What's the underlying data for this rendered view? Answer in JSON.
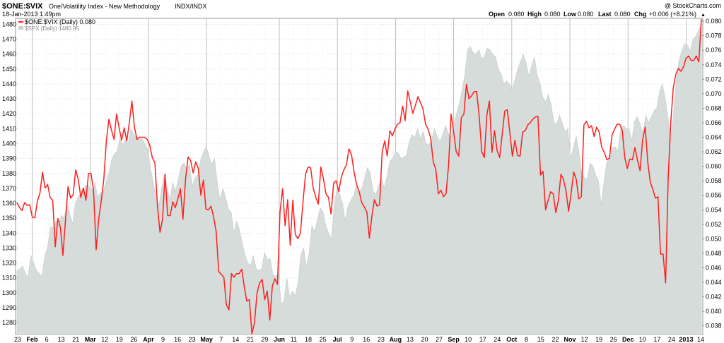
{
  "header": {
    "symbol": "$ONE:$VIX",
    "name": "One/Volatility Index - New Methodology",
    "exchange": "INDX/INDX",
    "copyright": "@ StockCharts.com",
    "date": "18-Jan-2013 1:49pm",
    "quote": {
      "open_label": "Open",
      "open": "0.080",
      "high_label": "High",
      "high": "0.080",
      "low_label": "Low",
      "low": "0.080",
      "last_label": "Last",
      "last": "0.080",
      "chg_label": "Chg",
      "chg": "+0.006 (+8.21%)",
      "chg_arrow": "▲"
    }
  },
  "legend": {
    "primary": "$ONE:$VIX (Daily) 0.080",
    "secondary": "$SPX (Daily) 1480.95"
  },
  "colors": {
    "primary_line": "#ff1f1f",
    "area_fill": "#d6dcda",
    "area_stroke": "#c2c9c7",
    "grid": "#cccccc",
    "text": "#000000"
  },
  "chart_data": {
    "type": "line",
    "title": "$ONE:$VIX One/Volatility Index - New Methodology INDX/INDX",
    "x_tick_labels": [
      "23",
      "Feb",
      "6",
      "13",
      "21",
      "Mar",
      "12",
      "19",
      "26",
      "Apr",
      "9",
      "16",
      "23",
      "May",
      "7",
      "14",
      "21",
      "29",
      "Jun",
      "11",
      "18",
      "25",
      "Jul",
      "9",
      "16",
      "23",
      "Aug",
      "13",
      "20",
      "27",
      "Sep",
      "10",
      "17",
      "24",
      "Oct",
      "8",
      "15",
      "22",
      "Nov",
      "12",
      "19",
      "26",
      "Dec",
      "10",
      "17",
      "24",
      "2013",
      "14"
    ],
    "left_axis": {
      "series": "$SPX",
      "ylim": [
        1272,
        1484
      ],
      "ticks": [
        1280,
        1290,
        1300,
        1310,
        1320,
        1330,
        1340,
        1350,
        1360,
        1370,
        1380,
        1390,
        1400,
        1410,
        1420,
        1430,
        1440,
        1450,
        1460,
        1470,
        1480
      ]
    },
    "right_axis": {
      "series": "$ONE:$VIX",
      "ylim": [
        0.0368,
        0.0804
      ],
      "ticks": [
        0.038,
        0.04,
        0.042,
        0.044,
        0.046,
        0.048,
        0.05,
        0.052,
        0.054,
        0.056,
        0.058,
        0.06,
        0.062,
        0.064,
        0.066,
        0.068,
        0.07,
        0.072,
        0.074,
        0.076,
        0.078,
        0.08
      ]
    },
    "series": [
      {
        "name": "$SPX (Daily) 1480.95",
        "type": "area",
        "axis": "left",
        "values": [
          1315,
          1316,
          1318,
          1313,
          1310,
          1325,
          1320,
          1315,
          1313,
          1311,
          1325,
          1330,
          1344,
          1344,
          1348,
          1346,
          1352,
          1350,
          1361,
          1353,
          1346,
          1360,
          1364,
          1368,
          1370,
          1372,
          1371,
          1369,
          1374,
          1364,
          1367,
          1368,
          1374,
          1380,
          1389,
          1393,
          1395,
          1404,
          1399,
          1403,
          1400,
          1410,
          1406,
          1405,
          1403,
          1403,
          1400,
          1396,
          1383,
          1374,
          1363,
          1358,
          1370,
          1380,
          1370,
          1362,
          1374,
          1368,
          1376,
          1385,
          1387,
          1383,
          1386,
          1371,
          1377,
          1379,
          1389,
          1394,
          1398,
          1392,
          1386,
          1390,
          1374,
          1362,
          1370,
          1364,
          1356,
          1354,
          1340,
          1348,
          1342,
          1333,
          1325,
          1320,
          1318,
          1325,
          1316,
          1315,
          1316,
          1327,
          1322,
          1323,
          1312,
          1311,
          1313,
          1292,
          1295,
          1310,
          1297,
          1301,
          1298,
          1306,
          1325,
          1330,
          1318,
          1326,
          1345,
          1341,
          1349,
          1357,
          1354,
          1345,
          1340,
          1336,
          1358,
          1370,
          1366,
          1360,
          1348,
          1358,
          1362,
          1365,
          1372,
          1368,
          1370,
          1377,
          1384,
          1380,
          1368,
          1366,
          1372,
          1377,
          1370,
          1378,
          1388,
          1390,
          1394,
          1394,
          1390,
          1391,
          1392,
          1401,
          1406,
          1404,
          1410,
          1403,
          1408,
          1400,
          1399,
          1402,
          1410,
          1405,
          1401,
          1406,
          1412,
          1407,
          1404,
          1412,
          1420,
          1427,
          1436,
          1446,
          1463,
          1465,
          1461,
          1460,
          1463,
          1457,
          1458,
          1464,
          1463,
          1460,
          1458,
          1450,
          1447,
          1440,
          1442,
          1440,
          1436,
          1443,
          1450,
          1455,
          1460,
          1454,
          1445,
          1452,
          1458,
          1446,
          1440,
          1431,
          1428,
          1433,
          1426,
          1414,
          1413,
          1419,
          1414,
          1408,
          1410,
          1390,
          1397,
          1405,
          1394,
          1380,
          1377,
          1376,
          1387,
          1385,
          1379,
          1375,
          1359,
          1374,
          1388,
          1389,
          1397,
          1398,
          1395,
          1410,
          1412,
          1410,
          1410,
          1402,
          1415,
          1418,
          1413,
          1407,
          1419,
          1414,
          1418,
          1422,
          1424,
          1435,
          1440,
          1430,
          1417,
          1402,
          1420,
          1443,
          1456,
          1462,
          1467,
          1466,
          1462,
          1470,
          1472,
          1476,
          1480
        ]
      },
      {
        "name": "$ONE:$VIX (Daily) 0.080",
        "type": "line",
        "axis": "right",
        "values": [
          0.055,
          0.0543,
          0.0539,
          0.055,
          0.0546,
          0.0547,
          0.053,
          0.0529,
          0.0552,
          0.0563,
          0.0592,
          0.057,
          0.0575,
          0.0557,
          0.0553,
          0.0489,
          0.0528,
          0.0516,
          0.0477,
          0.0526,
          0.0572,
          0.0556,
          0.0561,
          0.0595,
          0.0582,
          0.0557,
          0.057,
          0.0553,
          0.059,
          0.059,
          0.0566,
          0.0485,
          0.0527,
          0.0552,
          0.0582,
          0.0635,
          0.0665,
          0.065,
          0.0637,
          0.0672,
          0.0653,
          0.0636,
          0.0653,
          0.0635,
          0.066,
          0.069,
          0.0654,
          0.0637,
          0.064,
          0.064,
          0.064,
          0.0637,
          0.0629,
          0.0612,
          0.0605,
          0.0546,
          0.0509,
          0.0527,
          0.0589,
          0.0532,
          0.0532,
          0.0551,
          0.0543,
          0.0555,
          0.0569,
          0.0527,
          0.0582,
          0.0613,
          0.0608,
          0.0591,
          0.0606,
          0.0597,
          0.056,
          0.0581,
          0.0541,
          0.054,
          0.0545,
          0.053,
          0.051,
          0.0455,
          0.0451,
          0.0447,
          0.0409,
          0.0402,
          0.0452,
          0.0447,
          0.0452,
          0.0452,
          0.0458,
          0.0434,
          0.0414,
          0.0416,
          0.0367,
          0.0384,
          0.0425,
          0.0439,
          0.0444,
          0.0416,
          0.0428,
          0.0388,
          0.0435,
          0.0445,
          0.0437,
          0.0537,
          0.0569,
          0.0518,
          0.0554,
          0.0491,
          0.0553,
          0.0506,
          0.05,
          0.0508,
          0.0551,
          0.0589,
          0.0599,
          0.0598,
          0.057,
          0.0557,
          0.0548,
          0.0599,
          0.0583,
          0.0562,
          0.0557,
          0.0534,
          0.0577,
          0.058,
          0.0565,
          0.0585,
          0.0595,
          0.0602,
          0.0624,
          0.0616,
          0.0592,
          0.0575,
          0.0565,
          0.055,
          0.0544,
          0.0537,
          0.0501,
          0.0532,
          0.0554,
          0.0545,
          0.0547,
          0.062,
          0.0635,
          0.0614,
          0.0649,
          0.0642,
          0.0651,
          0.0658,
          0.066,
          0.0683,
          0.0663,
          0.0704,
          0.0689,
          0.0673,
          0.0684,
          0.0696,
          0.0688,
          0.0679,
          0.0658,
          0.0651,
          0.0639,
          0.0606,
          0.0596,
          0.0562,
          0.0567,
          0.0558,
          0.0562,
          0.0601,
          0.0672,
          0.0647,
          0.062,
          0.0614,
          0.0667,
          0.0672,
          0.0713,
          0.0693,
          0.0697,
          0.0703,
          0.0703,
          0.0669,
          0.062,
          0.0612,
          0.0671,
          0.069,
          0.0619,
          0.0649,
          0.0622,
          0.0612,
          0.0644,
          0.0676,
          0.0678,
          0.0646,
          0.0614,
          0.0636,
          0.0615,
          0.0614,
          0.0647,
          0.0649,
          0.0657,
          0.066,
          0.0665,
          0.0668,
          0.0669,
          0.0588,
          0.0593,
          0.054,
          0.0553,
          0.0565,
          0.0562,
          0.0536,
          0.0553,
          0.0589,
          0.0582,
          0.0566,
          0.0538,
          0.0563,
          0.0592,
          0.0582,
          0.0555,
          0.0558,
          0.0657,
          0.0662,
          0.0653,
          0.0656,
          0.0641,
          0.0654,
          0.0647,
          0.0626,
          0.0619,
          0.0609,
          0.0611,
          0.0643,
          0.0651,
          0.0658,
          0.0658,
          0.065,
          0.0612,
          0.0597,
          0.061,
          0.0609,
          0.0626,
          0.0608,
          0.0594,
          0.0637,
          0.0654,
          0.0606,
          0.0578,
          0.0568,
          0.0556,
          0.0558,
          0.0479,
          0.0479,
          0.0439,
          0.0583,
          0.066,
          0.0708,
          0.0727,
          0.0735,
          0.0731,
          0.0737,
          0.0749,
          0.0752,
          0.0746,
          0.0746,
          0.0752,
          0.0744,
          0.0806
        ]
      }
    ],
    "grid": true,
    "legend_position": "top-left"
  }
}
